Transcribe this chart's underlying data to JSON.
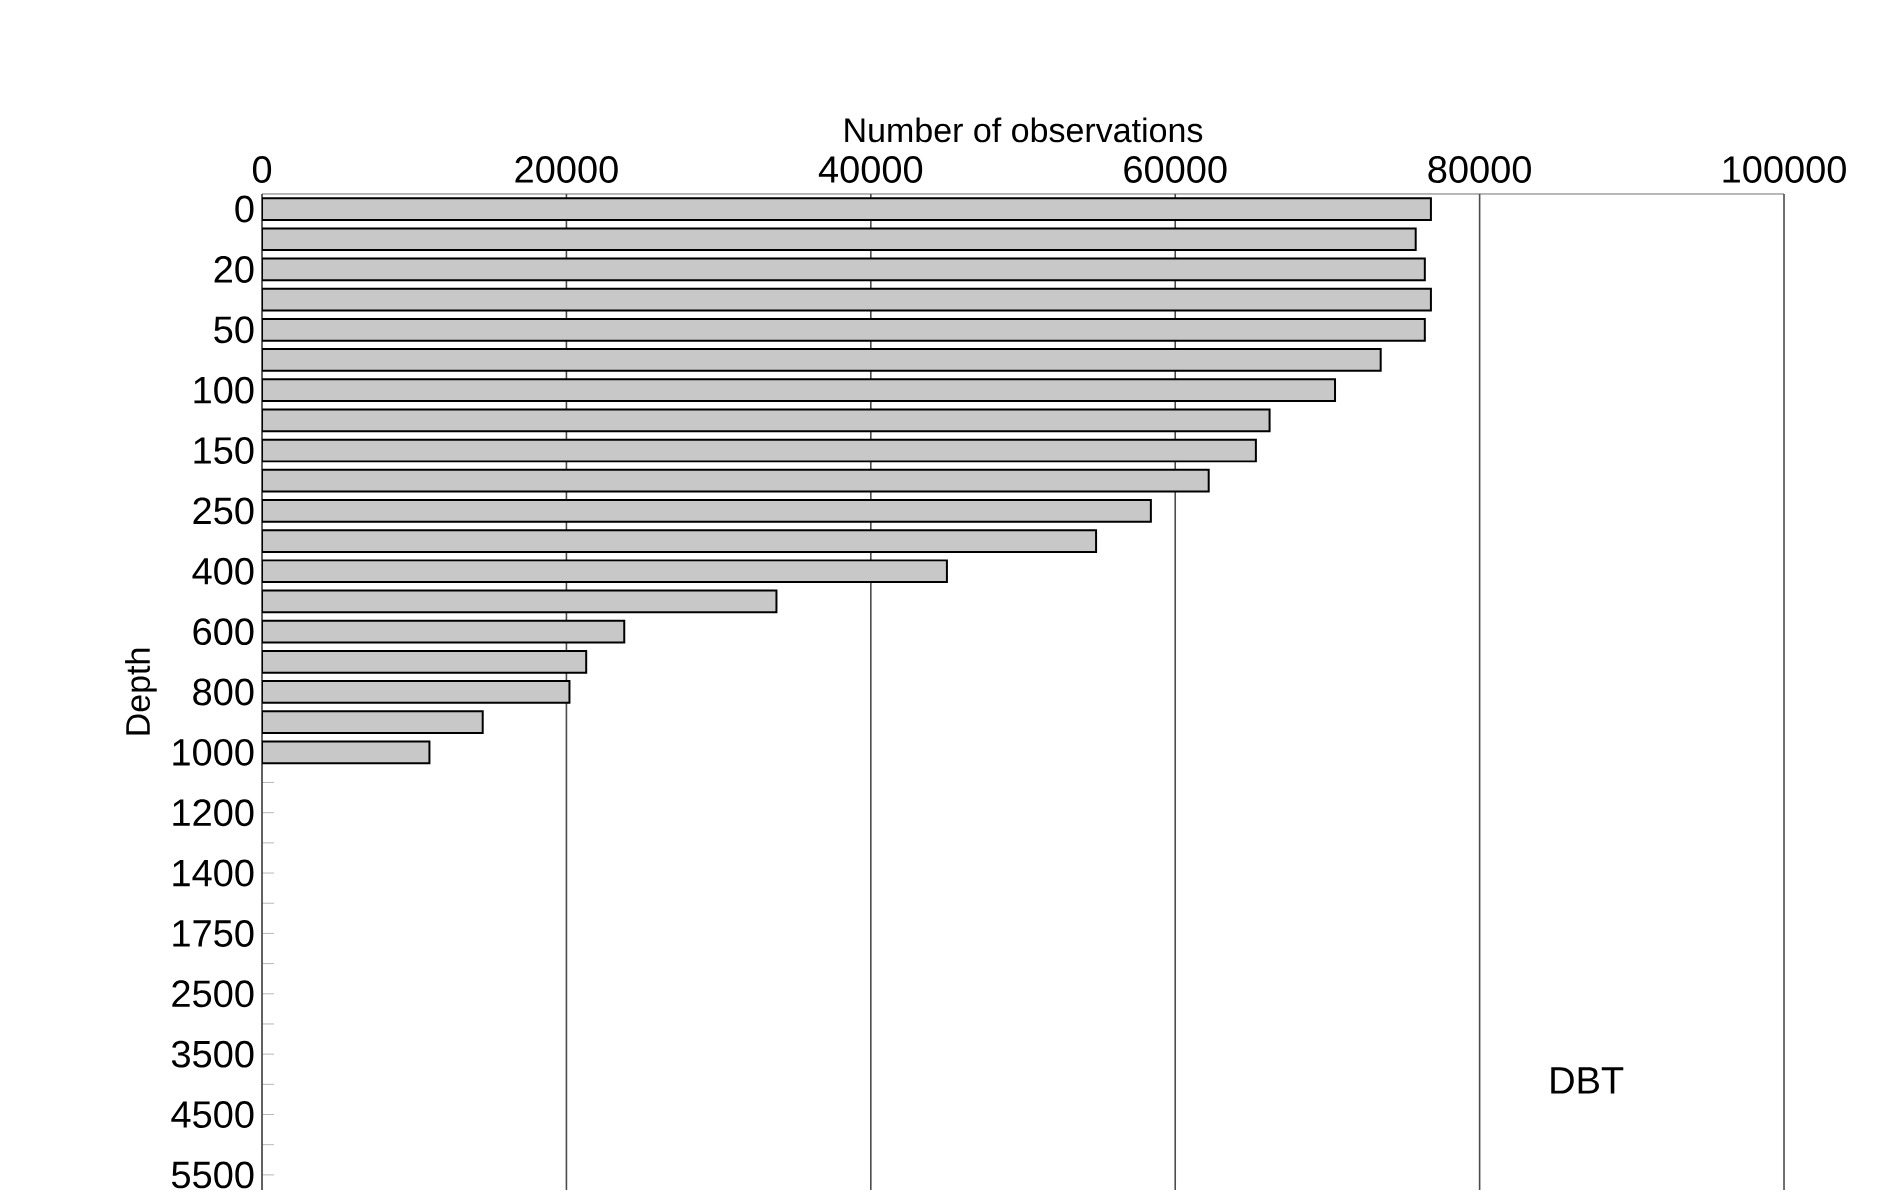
{
  "chart_data": {
    "type": "bar",
    "orientation": "horizontal",
    "xlabel": "Number of observations",
    "ylabel": "Depth",
    "categories": [
      "0",
      null,
      "20",
      null,
      "50",
      null,
      "100",
      null,
      "150",
      null,
      "250",
      null,
      "400",
      null,
      "600",
      null,
      "800",
      null,
      "1000",
      null,
      "1200",
      null,
      "1400",
      null,
      "1750",
      null,
      "2500",
      null,
      "3500",
      null,
      "4500",
      null,
      "5500"
    ],
    "values": [
      76800,
      75800,
      76400,
      76800,
      76400,
      73500,
      70500,
      66200,
      65300,
      62200,
      58400,
      54800,
      45000,
      33800,
      23800,
      21300,
      20200,
      14500,
      11000,
      null,
      null,
      null,
      null,
      null,
      null,
      null,
      null,
      null,
      null,
      null,
      null,
      null,
      null
    ],
    "color": "#c8c8c8",
    "xlim": [
      0,
      100000
    ],
    "xticks": [
      0,
      20000,
      40000,
      60000,
      80000,
      100000
    ],
    "grid": "x",
    "annotations": [
      "DBT"
    ]
  }
}
